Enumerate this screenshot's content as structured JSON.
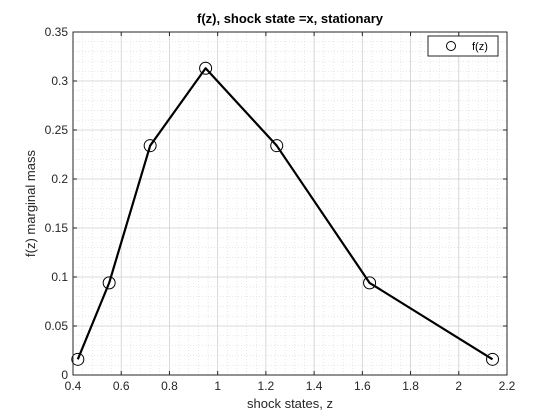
{
  "chart_data": {
    "type": "line",
    "title": "f(z), shock state =x, stationary",
    "xlabel": "shock states, z",
    "ylabel": "f(z) marginal mass",
    "xlim": [
      0.4,
      2.2
    ],
    "ylim": [
      0,
      0.35
    ],
    "xticks": [
      0.4,
      0.6,
      0.8,
      1,
      1.2,
      1.4,
      1.6,
      1.8,
      2,
      2.2
    ],
    "xtick_labels": [
      "0.4",
      "0.6",
      "0.8",
      "1",
      "1.2",
      "1.4",
      "1.6",
      "1.8",
      "2",
      "2.2"
    ],
    "yticks": [
      0,
      0.05,
      0.1,
      0.15,
      0.2,
      0.25,
      0.3,
      0.35
    ],
    "ytick_labels": [
      "0",
      "0.05",
      "0.1",
      "0.15",
      "0.2",
      "0.25",
      "0.3",
      "0.35"
    ],
    "grid": true,
    "minor_grid": true,
    "legend_position": "top-right",
    "series": [
      {
        "name": "f(z)",
        "marker": "circle",
        "color": "#000000",
        "x": [
          0.42,
          0.55,
          0.72,
          0.95,
          1.245,
          1.63,
          2.14
        ],
        "y": [
          0.016,
          0.094,
          0.234,
          0.313,
          0.234,
          0.094,
          0.016
        ]
      }
    ]
  }
}
